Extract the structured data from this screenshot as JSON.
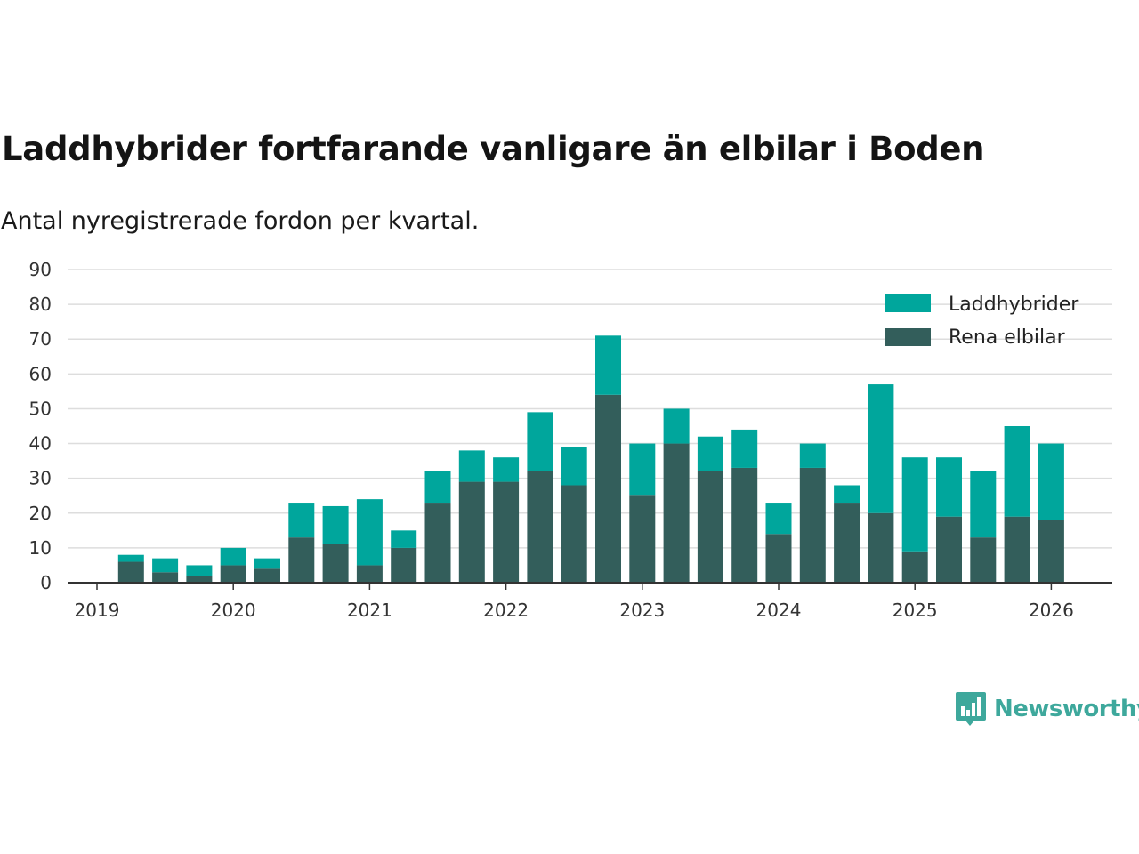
{
  "brand": "Newsworthy",
  "colors": {
    "hybrid": "#00a69c",
    "electric": "#335e5b",
    "grid": "#dddddd",
    "axis": "#333333"
  },
  "chart_data": {
    "type": "bar",
    "stacked": true,
    "title": "Laddhybrider fortfarande vanligare än elbilar i Boden",
    "subtitle": "Antal nyregistrerade fordon per kvartal.",
    "xlabel": "",
    "ylabel": "",
    "ylim": [
      0,
      90
    ],
    "yticks": [
      0,
      10,
      20,
      30,
      40,
      50,
      60,
      70,
      80,
      90
    ],
    "xticks": [
      "2019",
      "2020",
      "2021",
      "2022",
      "2023",
      "2024",
      "2025",
      "2026"
    ],
    "legend_position": "top-right",
    "categories": [
      "2019 Q1",
      "2019 Q2",
      "2019 Q3",
      "2019 Q4",
      "2020 Q1",
      "2020 Q2",
      "2020 Q3",
      "2020 Q4",
      "2021 Q1",
      "2021 Q2",
      "2021 Q3",
      "2021 Q4",
      "2022 Q1",
      "2022 Q2",
      "2022 Q3",
      "2022 Q4",
      "2023 Q1",
      "2023 Q2",
      "2023 Q3",
      "2023 Q4",
      "2024 Q1",
      "2024 Q2",
      "2024 Q3",
      "2024 Q4",
      "2025 Q1",
      "2025 Q2",
      "2025 Q3",
      "2025 Q4"
    ],
    "series": [
      {
        "name": "Laddhybrider",
        "values": [
          2,
          4,
          3,
          5,
          3,
          10,
          11,
          19,
          5,
          9,
          9,
          7,
          17,
          11,
          17,
          15,
          10,
          10,
          11,
          9,
          7,
          5,
          37,
          27,
          17,
          19,
          26,
          22
        ]
      },
      {
        "name": "Rena elbilar",
        "values": [
          6,
          3,
          2,
          5,
          4,
          13,
          11,
          5,
          10,
          23,
          29,
          29,
          32,
          28,
          54,
          25,
          40,
          32,
          33,
          14,
          33,
          23,
          20,
          9,
          19,
          13,
          19,
          18
        ]
      }
    ]
  }
}
